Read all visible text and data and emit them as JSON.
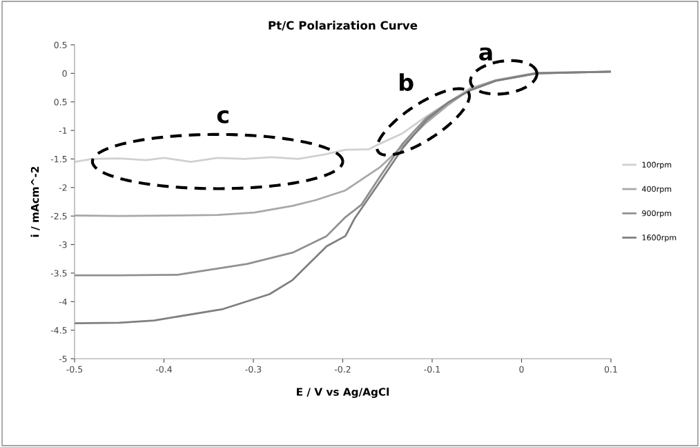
{
  "chart_data": {
    "type": "line",
    "title": "Pt/C Polarization Curve",
    "xlabel": "E / V vs Ag/AgCl",
    "ylabel": "i / mAcm^-2",
    "xlim": [
      -0.5,
      0.1
    ],
    "xticks": [
      -0.5,
      -0.4,
      -0.3,
      -0.2,
      -0.1,
      0,
      0.1
    ],
    "ylim": [
      -5,
      0.5
    ],
    "yticks": [
      0.5,
      0,
      {
        "value": -0.5,
        "label": "0.5"
      },
      -1,
      -1.5,
      -2,
      -2.5,
      -3,
      -3.5,
      -4,
      {
        "value": -4.5,
        "label": "-4.5"
      },
      -5
    ],
    "grid": false,
    "legend": "right",
    "marker": "none",
    "line_style": "solid",
    "annotations": [
      "a",
      "b",
      "c"
    ],
    "series": [
      {
        "name": "100rpm",
        "color": "#d0d0d0",
        "x": [
          -0.5,
          -0.48,
          -0.45,
          -0.42,
          -0.4,
          -0.37,
          -0.34,
          -0.31,
          -0.28,
          -0.25,
          -0.22,
          -0.197,
          -0.171,
          -0.158,
          -0.133,
          -0.107,
          -0.081,
          -0.058,
          -0.029,
          0.017,
          0.1
        ],
        "values": [
          -1.55,
          -1.5,
          -1.49,
          -1.52,
          -1.48,
          -1.55,
          -1.48,
          -1.5,
          -1.47,
          -1.5,
          -1.42,
          -1.34,
          -1.33,
          -1.23,
          -1.05,
          -0.76,
          -0.5,
          -0.26,
          -0.12,
          0.01,
          0.03
        ]
      },
      {
        "name": "400rpm",
        "color": "#a8a8a8",
        "x": [
          -0.5,
          -0.45,
          -0.385,
          -0.34,
          -0.299,
          -0.256,
          -0.23,
          -0.197,
          -0.158,
          -0.145,
          -0.107,
          -0.081,
          -0.058,
          -0.029,
          0.017,
          0.1
        ],
        "values": [
          -2.49,
          -2.5,
          -2.49,
          -2.48,
          -2.44,
          -2.32,
          -2.22,
          -2.05,
          -1.64,
          -1.45,
          -0.87,
          -0.54,
          -0.28,
          -0.12,
          0.01,
          0.03
        ]
      },
      {
        "name": "900rpm",
        "color": "#909090",
        "x": [
          -0.5,
          -0.45,
          -0.385,
          -0.307,
          -0.256,
          -0.218,
          -0.197,
          -0.179,
          -0.158,
          -0.133,
          -0.107,
          -0.081,
          -0.058,
          -0.029,
          0.017,
          0.1
        ],
        "values": [
          -3.54,
          -3.54,
          -3.53,
          -3.34,
          -3.14,
          -2.85,
          -2.52,
          -2.3,
          -1.8,
          -1.23,
          -0.79,
          -0.5,
          -0.3,
          -0.13,
          0.0,
          0.03
        ]
      },
      {
        "name": "1600rpm",
        "color": "#7f7f7f",
        "x": [
          -0.5,
          -0.45,
          -0.411,
          -0.334,
          -0.282,
          -0.256,
          -0.218,
          -0.197,
          -0.187,
          -0.158,
          -0.133,
          -0.107,
          -0.081,
          -0.058,
          -0.029,
          0.017,
          0.1
        ],
        "values": [
          -4.38,
          -4.37,
          -4.33,
          -4.13,
          -3.87,
          -3.62,
          -3.03,
          -2.85,
          -2.55,
          -1.89,
          -1.31,
          -0.83,
          -0.5,
          -0.3,
          -0.13,
          0.0,
          0.03
        ]
      }
    ]
  }
}
